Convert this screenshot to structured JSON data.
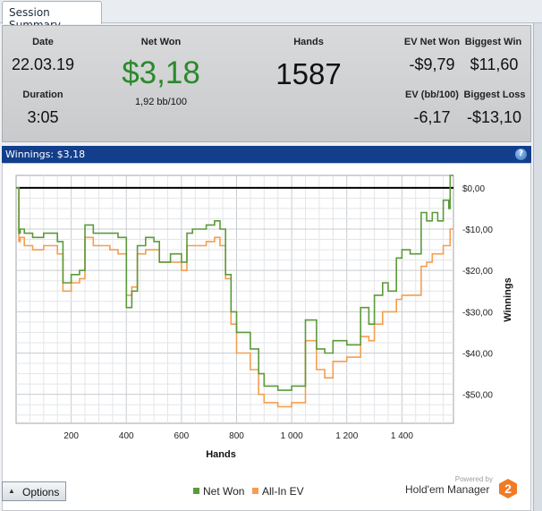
{
  "tab": {
    "label": "Session Summary"
  },
  "summary": {
    "date_label": "Date",
    "date": "22.03.19",
    "duration_label": "Duration",
    "duration": "3:05",
    "netwon_label": "Net Won",
    "netwon": "$3,18",
    "bb100": "1,92 bb/100",
    "hands_label": "Hands",
    "hands": "1587",
    "ev_netwon_label": "EV Net Won",
    "ev_netwon": "-$9,79",
    "biggest_win_label": "Biggest Win",
    "biggest_win": "$11,60",
    "ev_bb_label": "EV (bb/100)",
    "ev_bb": "-6,17",
    "biggest_loss_label": "Biggest Loss",
    "biggest_loss": "-$13,10"
  },
  "winnings_bar": {
    "label": "Winnings: $3,18",
    "help_glyph": "?"
  },
  "chart_data": {
    "type": "line",
    "xlabel": "Hands",
    "ylabel": "Winnings",
    "xlim": [
      0,
      1587
    ],
    "ylim": [
      -57,
      3
    ],
    "x_ticks": [
      200,
      400,
      600,
      800,
      1000,
      1200,
      1400
    ],
    "x_tick_labels": [
      "200",
      "400",
      "600",
      "800",
      "1 000",
      "1 200",
      "1 400"
    ],
    "y_ticks": [
      0,
      -10,
      -20,
      -30,
      -40,
      -50
    ],
    "y_tick_labels": [
      "$0,00",
      "-$10,00",
      "-$20,00",
      "-$30,00",
      "-$40,00",
      "-$50,00"
    ],
    "grid": true,
    "legend_position": "bottom",
    "series": [
      {
        "name": "Net Won",
        "color": "#5b9a3a",
        "x": [
          0,
          10,
          15,
          30,
          60,
          100,
          150,
          170,
          200,
          230,
          250,
          280,
          300,
          340,
          370,
          400,
          420,
          440,
          470,
          500,
          520,
          560,
          600,
          620,
          640,
          690,
          720,
          740,
          760,
          780,
          800,
          850,
          880,
          900,
          950,
          1000,
          1050,
          1090,
          1120,
          1150,
          1200,
          1250,
          1280,
          1300,
          1330,
          1350,
          1380,
          1400,
          1430,
          1450,
          1470,
          1490,
          1510,
          1530,
          1550,
          1570,
          1575,
          1587
        ],
        "y": [
          0,
          -11,
          -10,
          -11,
          -12,
          -11,
          -13,
          -23,
          -21,
          -20,
          -9,
          -11,
          -11,
          -11,
          -12,
          -29,
          -25,
          -14,
          -12,
          -13,
          -18,
          -16,
          -18,
          -11,
          -10,
          -9,
          -8,
          -10,
          -21,
          -30,
          -35,
          -39,
          -45,
          -48,
          -49,
          -48,
          -32,
          -39,
          -40,
          -37,
          -38,
          -29,
          -33,
          -26,
          -23,
          -25,
          -17,
          -15,
          -16,
          -16,
          -6,
          -8,
          -6,
          -8,
          -3,
          -5,
          3,
          3
        ]
      },
      {
        "name": "All-In EV",
        "color": "#f49e4f",
        "x": [
          0,
          10,
          15,
          30,
          60,
          100,
          150,
          170,
          200,
          230,
          250,
          280,
          300,
          340,
          370,
          400,
          420,
          440,
          470,
          500,
          520,
          560,
          600,
          620,
          640,
          690,
          720,
          740,
          760,
          780,
          800,
          850,
          880,
          900,
          950,
          1000,
          1050,
          1090,
          1120,
          1150,
          1200,
          1250,
          1280,
          1300,
          1330,
          1350,
          1380,
          1400,
          1430,
          1450,
          1470,
          1490,
          1510,
          1530,
          1550,
          1570,
          1575,
          1587
        ],
        "y": [
          0,
          -13,
          -12,
          -14,
          -15,
          -14,
          -16,
          -25,
          -23,
          -22,
          -12,
          -14,
          -14,
          -15,
          -16,
          -26,
          -24,
          -16,
          -15,
          -15,
          -18,
          -18,
          -20,
          -14,
          -14,
          -13,
          -12,
          -14,
          -22,
          -33,
          -40,
          -44,
          -50,
          -52,
          -53,
          -52,
          -37,
          -44,
          -46,
          -42,
          -41,
          -36,
          -37,
          -33,
          -30,
          -30,
          -27,
          -26,
          -26,
          -26,
          -19,
          -18,
          -16,
          -16,
          -14,
          -14,
          -10,
          -10
        ]
      }
    ]
  },
  "options_button": {
    "label": "Options",
    "arrow_glyph": "▲"
  },
  "brand": {
    "powered_by": "Powered by",
    "name": "Hold'em Manager",
    "badge": "2"
  }
}
